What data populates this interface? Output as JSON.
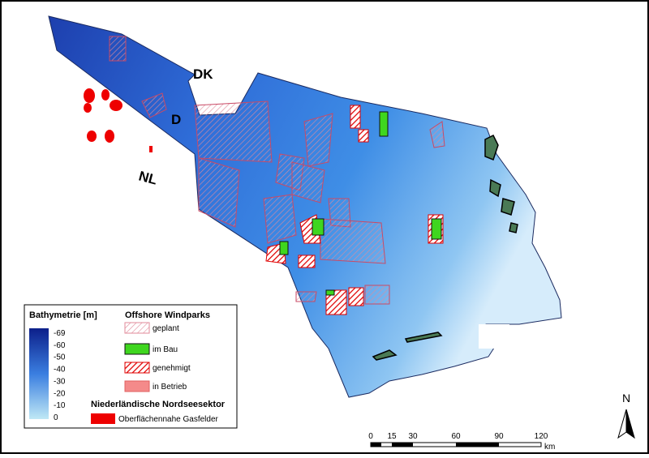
{
  "map": {
    "labels": [
      "DK",
      "D",
      "NL"
    ],
    "legend": {
      "bathymetry": {
        "title": "Bathymetrie [m]",
        "ticks": [
          "-69",
          "-60",
          "-50",
          "-40",
          "-30",
          "-20",
          "-10",
          "0"
        ]
      },
      "windparks": {
        "title": "Offshore Windparks",
        "items": [
          "geplant",
          "im Bau",
          "genehmigt",
          "in Betrieb"
        ]
      },
      "nl_sector": {
        "title": "Niederländische Nordseesektor",
        "items": [
          "Oberflächennahe Gasfelder"
        ]
      }
    },
    "scale_bar": {
      "ticks": [
        "0",
        "15",
        "30",
        "60",
        "90",
        "120"
      ],
      "unit": "km"
    },
    "north_arrow": "N"
  }
}
